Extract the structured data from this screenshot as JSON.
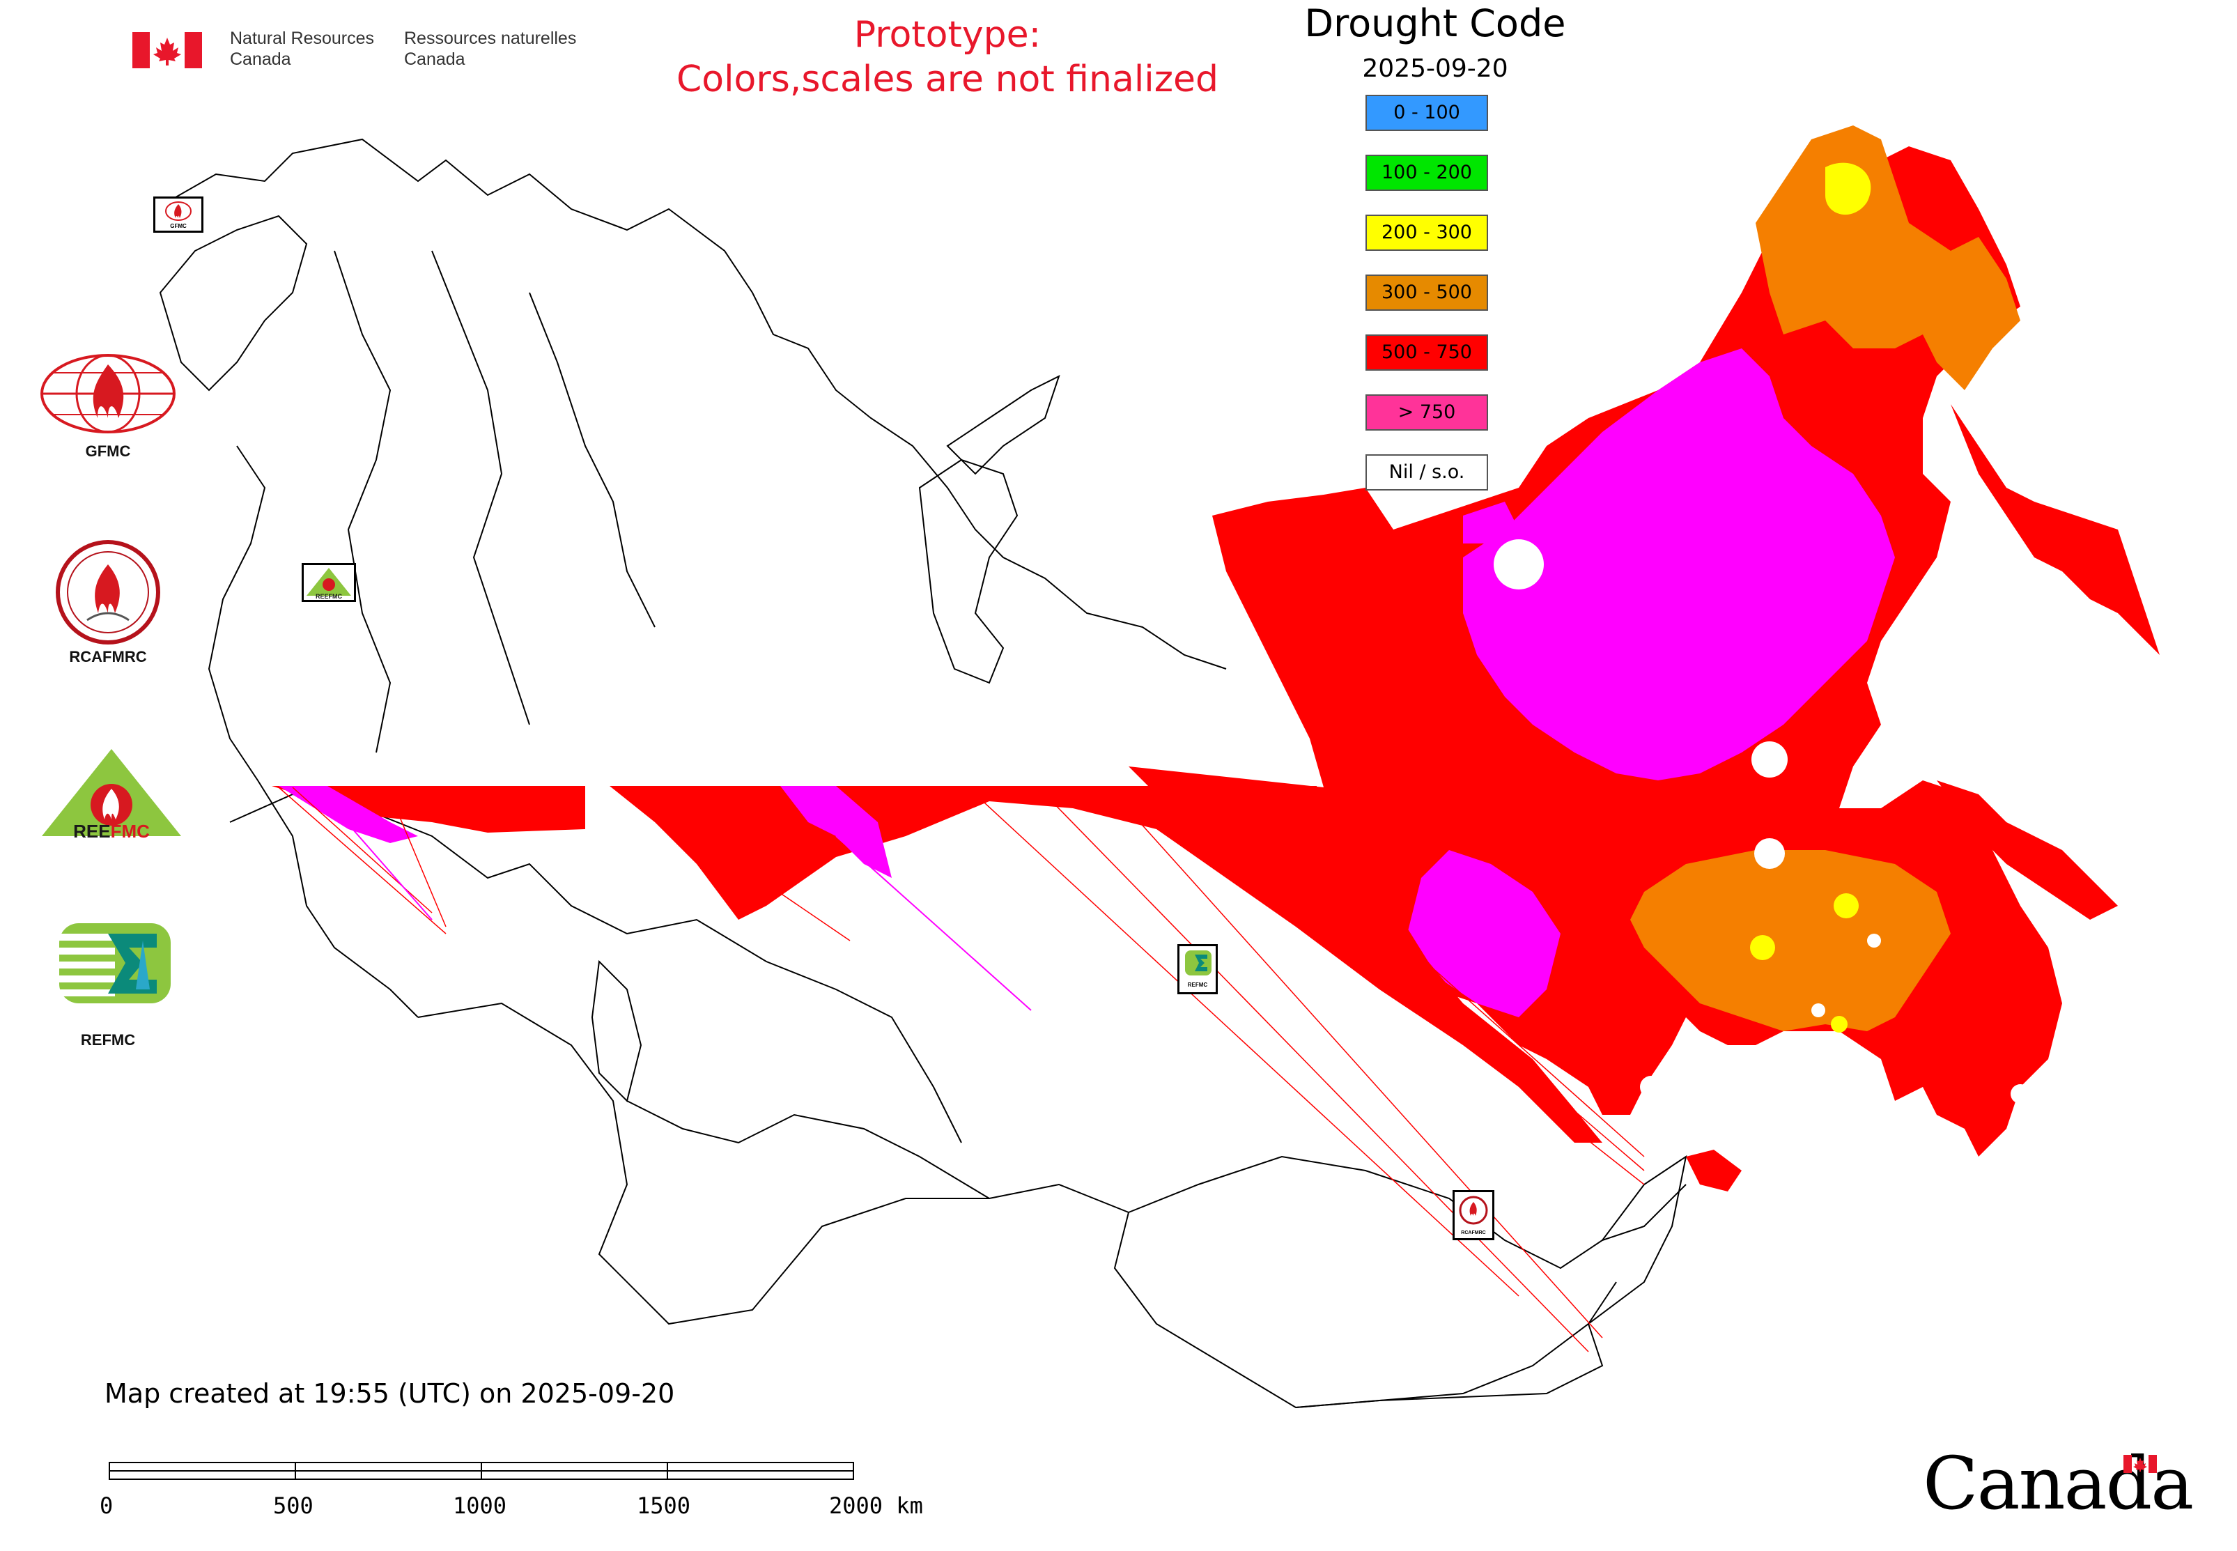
{
  "header": {
    "agency_en_line1": "Natural Resources",
    "agency_en_line2": "Canada",
    "agency_fr_line1": "Ressources naturelles",
    "agency_fr_line2": "Canada"
  },
  "notice": {
    "line1": "Prototype:",
    "line2": "Colors,scales are not finalized",
    "color": "#e8172b"
  },
  "legend": {
    "title": "Drought Code",
    "date": "2025-09-20",
    "items": [
      {
        "label": "0 - 100",
        "color": "#3399ff"
      },
      {
        "label": "100 - 200",
        "color": "#00e600"
      },
      {
        "label": "200 - 300",
        "color": "#ffff00"
      },
      {
        "label": "300 - 500",
        "color": "#e68a00"
      },
      {
        "label": "500 - 750",
        "color": "#ff0000"
      },
      {
        "label": "> 750",
        "color": "#ff3399"
      },
      {
        "label": "Nil / s.o.",
        "color": "#ffffff"
      }
    ]
  },
  "partner_logos": [
    {
      "name": "GFMC",
      "icon": "gfmc-globe-flame-icon"
    },
    {
      "name": "RCAFMRC",
      "icon": "rcafmrc-seal-icon"
    },
    {
      "name": "REEFMC",
      "icon": "reefmc-triangle-icon"
    },
    {
      "name": "REFMC",
      "icon": "refmc-sigma-icon"
    }
  ],
  "map_markers": [
    {
      "text": "GFMC",
      "icon": "gfmc-marker-icon"
    },
    {
      "text": "REEFMC",
      "icon": "reefmc-marker-icon"
    },
    {
      "text": "REFMC",
      "icon": "refmc-marker-icon"
    },
    {
      "text": "RCAFMRC",
      "icon": "rcafmrc-marker-icon"
    }
  ],
  "map_colors": {
    "orange": "#f57f00",
    "red": "#ff0000",
    "magenta": "#ff00ff",
    "yellow": "#ffff00"
  },
  "footer": {
    "created": "Map created at 19:55 (UTC) on 2025-09-20",
    "wordmark": "Canada"
  },
  "scale_bar": {
    "ticks": [
      "0",
      "500",
      "1000",
      "1500",
      "2000 km"
    ]
  }
}
